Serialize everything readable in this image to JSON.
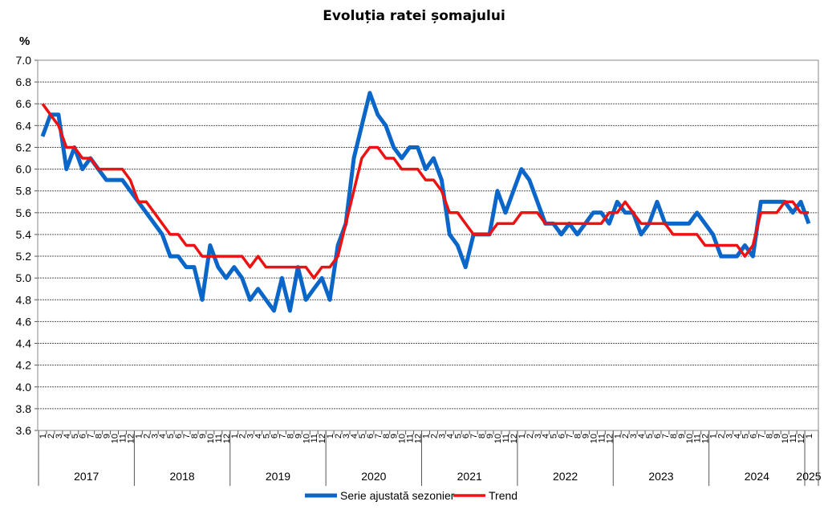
{
  "chart_data": {
    "type": "line",
    "title": "Evoluția ratei șomajului",
    "ylabel": "%",
    "ylim": [
      3.6,
      7.0
    ],
    "ytick_step": 0.2,
    "grid": true,
    "legend_position": "bottom",
    "years": [
      "2017",
      "2018",
      "2019",
      "2020",
      "2021",
      "2022",
      "2023",
      "2024",
      "2025"
    ],
    "month_labels": [
      "1",
      "2",
      "3",
      "4",
      "5",
      "6",
      "7",
      "8",
      "9",
      "10",
      "11",
      "12"
    ],
    "series": [
      {
        "name": "Serie ajustată sezonier",
        "color": "#0a66c8",
        "values": [
          6.3,
          6.5,
          6.5,
          6.0,
          6.2,
          6.0,
          6.1,
          6.0,
          5.9,
          5.9,
          5.9,
          5.8,
          5.7,
          5.6,
          5.5,
          5.4,
          5.2,
          5.2,
          5.1,
          5.1,
          4.8,
          5.3,
          5.1,
          5.0,
          5.1,
          5.0,
          4.8,
          4.9,
          4.8,
          4.7,
          5.0,
          4.7,
          5.1,
          4.8,
          4.9,
          5.0,
          4.8,
          5.3,
          5.5,
          6.1,
          6.4,
          6.7,
          6.5,
          6.4,
          6.2,
          6.1,
          6.2,
          6.2,
          6.0,
          6.1,
          5.9,
          5.4,
          5.3,
          5.1,
          5.4,
          5.4,
          5.4,
          5.8,
          5.6,
          5.8,
          6.0,
          5.9,
          5.7,
          5.5,
          5.5,
          5.4,
          5.5,
          5.4,
          5.5,
          5.6,
          5.6,
          5.5,
          5.7,
          5.6,
          5.6,
          5.4,
          5.5,
          5.7,
          5.5,
          5.5,
          5.5,
          5.5,
          5.6,
          5.5,
          5.4,
          5.2,
          5.2,
          5.2,
          5.3,
          5.2,
          5.7,
          5.7,
          5.7,
          5.7,
          5.6,
          5.7,
          5.5
        ]
      },
      {
        "name": "Trend",
        "color": "#ee1111",
        "values": [
          6.6,
          6.5,
          6.4,
          6.2,
          6.2,
          6.1,
          6.1,
          6.0,
          6.0,
          6.0,
          6.0,
          5.9,
          5.7,
          5.7,
          5.6,
          5.5,
          5.4,
          5.4,
          5.3,
          5.3,
          5.2,
          5.2,
          5.2,
          5.2,
          5.2,
          5.2,
          5.1,
          5.2,
          5.1,
          5.1,
          5.1,
          5.1,
          5.1,
          5.1,
          5.0,
          5.1,
          5.1,
          5.2,
          5.5,
          5.8,
          6.1,
          6.2,
          6.2,
          6.1,
          6.1,
          6.0,
          6.0,
          6.0,
          5.9,
          5.9,
          5.8,
          5.6,
          5.6,
          5.5,
          5.4,
          5.4,
          5.4,
          5.5,
          5.5,
          5.5,
          5.6,
          5.6,
          5.6,
          5.5,
          5.5,
          5.5,
          5.5,
          5.5,
          5.5,
          5.5,
          5.5,
          5.6,
          5.6,
          5.7,
          5.6,
          5.5,
          5.5,
          5.5,
          5.5,
          5.4,
          5.4,
          5.4,
          5.4,
          5.3,
          5.3,
          5.3,
          5.3,
          5.3,
          5.2,
          5.3,
          5.6,
          5.6,
          5.6,
          5.7,
          5.7,
          5.6,
          5.6
        ]
      }
    ]
  }
}
